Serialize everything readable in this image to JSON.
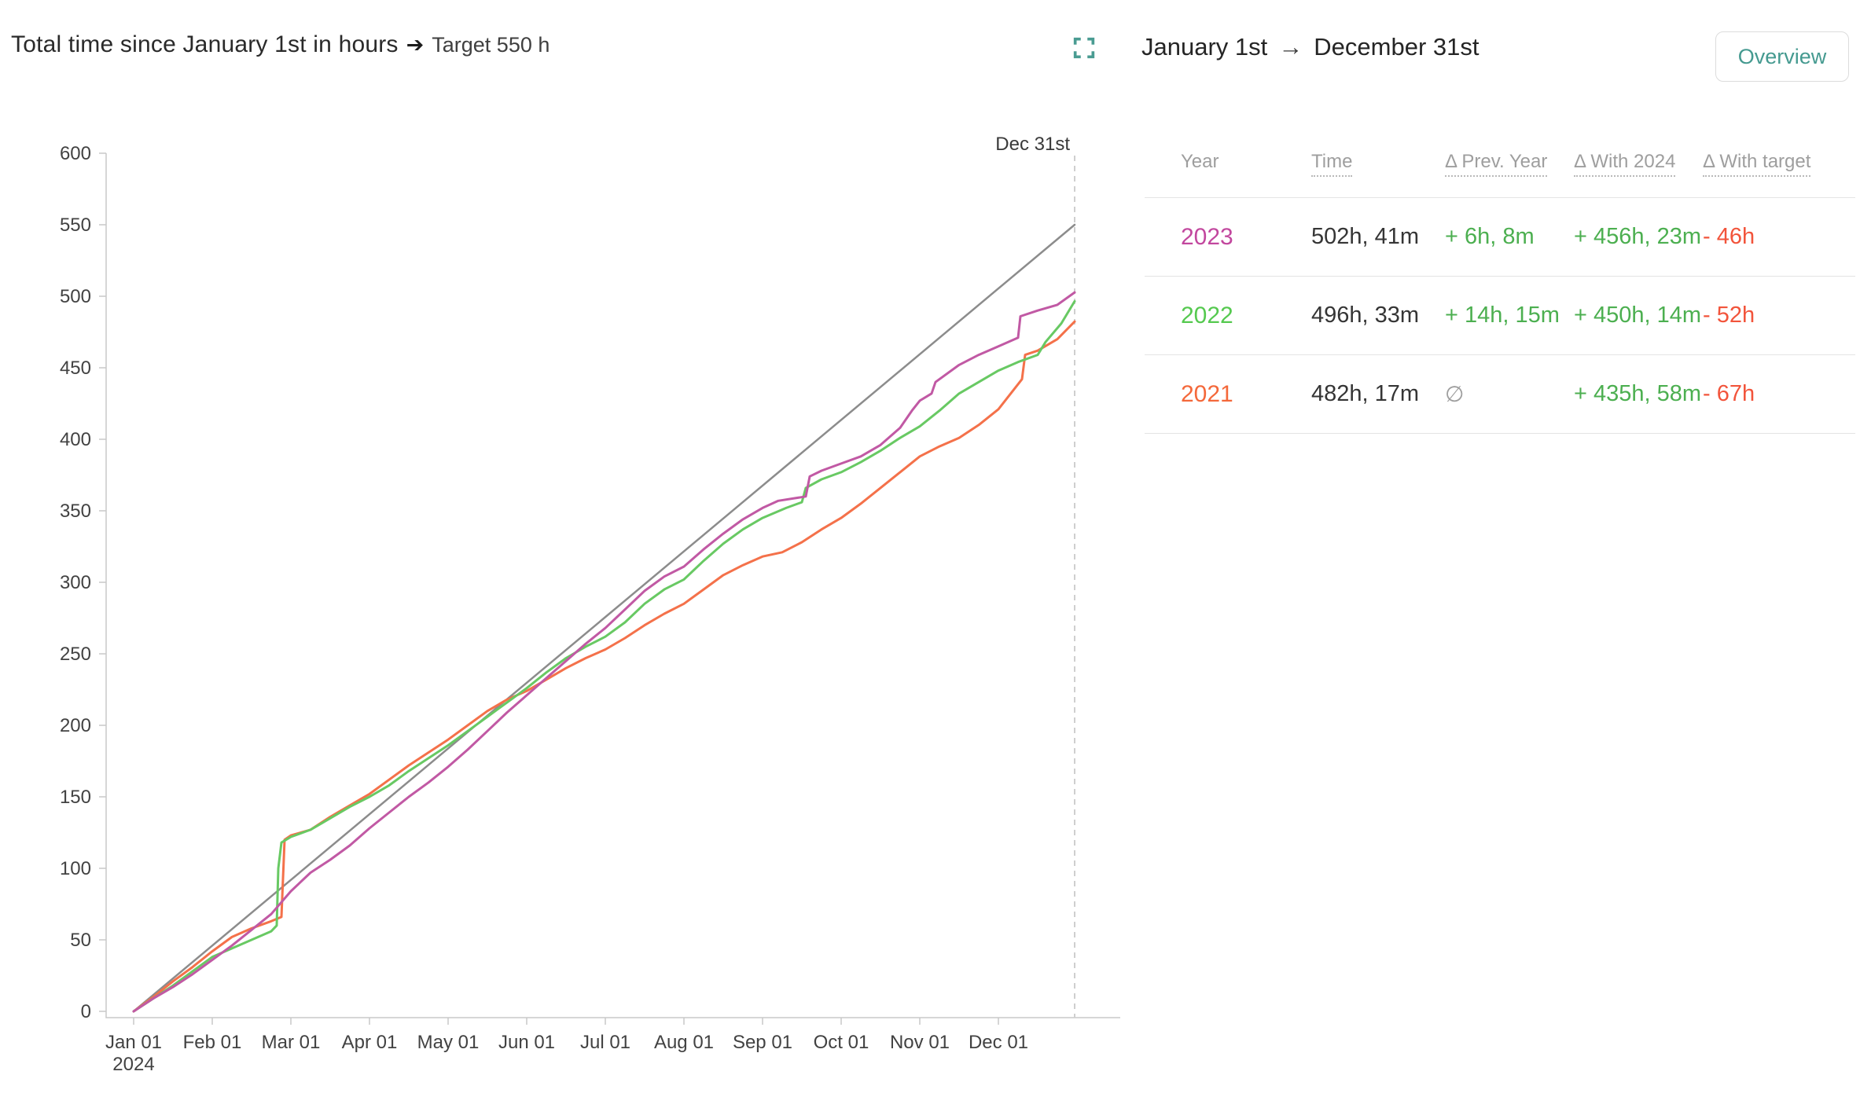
{
  "header": {
    "chart_title": "Total time since January 1st in hours",
    "title_arrow": "➔",
    "chart_target_label": "Target 550 h",
    "range_start": "January 1st",
    "range_arrow": "→",
    "range_end": "December 31st",
    "overview_button_label": "Overview"
  },
  "colors": {
    "accent_teal": "#459a90",
    "target_line": "#8c8c8c",
    "axis": "#c9c9c9",
    "dashed_line": "#cfcfcf",
    "positive_green": "#4caf50",
    "negative_red": "#f2543b",
    "year_2023": "#c2479e",
    "year_2022": "#55c94f",
    "year_2021": "#f4683a"
  },
  "chart_data": {
    "type": "line",
    "title": "Total time since January 1st in hours",
    "target_label": "Target 550 h",
    "xlabel": "",
    "ylabel": "",
    "y_axis": {
      "min": 0,
      "max": 600,
      "tick_step": 50
    },
    "x_axis": {
      "ticks": [
        "Jan 01",
        "Feb 01",
        "Mar 01",
        "Apr 01",
        "May 01",
        "Jun 01",
        "Jul 01",
        "Aug 01",
        "Sep 01",
        "Oct 01",
        "Nov 01",
        "Dec 01"
      ],
      "sub_label": "2024",
      "end_label": "Dec 31st",
      "end_month": 11.97
    },
    "grid": false,
    "legend": "none",
    "series": [
      {
        "name": "2024 target",
        "color": "#8c8c8c",
        "width": 2.5,
        "points": [
          [
            0,
            0
          ],
          [
            11.97,
            550
          ]
        ]
      },
      {
        "name": "2021",
        "color": "#f4714a",
        "width": 3,
        "points": [
          [
            0,
            0
          ],
          [
            0.25,
            10
          ],
          [
            0.5,
            21
          ],
          [
            0.75,
            31
          ],
          [
            1,
            42
          ],
          [
            1.25,
            52
          ],
          [
            1.5,
            58
          ],
          [
            1.75,
            63
          ],
          [
            1.88,
            66
          ],
          [
            1.92,
            120
          ],
          [
            2,
            123
          ],
          [
            2.25,
            127
          ],
          [
            2.5,
            136
          ],
          [
            2.75,
            144
          ],
          [
            3,
            152
          ],
          [
            3.25,
            162
          ],
          [
            3.5,
            172
          ],
          [
            3.75,
            181
          ],
          [
            4,
            190
          ],
          [
            4.25,
            200
          ],
          [
            4.5,
            210
          ],
          [
            4.75,
            218
          ],
          [
            5,
            224
          ],
          [
            5.25,
            232
          ],
          [
            5.5,
            240
          ],
          [
            5.75,
            247
          ],
          [
            6,
            253
          ],
          [
            6.25,
            261
          ],
          [
            6.5,
            270
          ],
          [
            6.75,
            278
          ],
          [
            7,
            285
          ],
          [
            7.25,
            295
          ],
          [
            7.5,
            305
          ],
          [
            7.75,
            312
          ],
          [
            8,
            318
          ],
          [
            8.25,
            321
          ],
          [
            8.5,
            328
          ],
          [
            8.75,
            337
          ],
          [
            9,
            345
          ],
          [
            9.25,
            355
          ],
          [
            9.5,
            366
          ],
          [
            9.75,
            377
          ],
          [
            10,
            388
          ],
          [
            10.25,
            395
          ],
          [
            10.5,
            401
          ],
          [
            10.75,
            410
          ],
          [
            11,
            421
          ],
          [
            11.2,
            435
          ],
          [
            11.3,
            442
          ],
          [
            11.34,
            459
          ],
          [
            11.5,
            462
          ],
          [
            11.75,
            470
          ],
          [
            11.97,
            482.3
          ]
        ]
      },
      {
        "name": "2022",
        "color": "#68c963",
        "width": 3,
        "points": [
          [
            0,
            0
          ],
          [
            0.25,
            9
          ],
          [
            0.5,
            18
          ],
          [
            0.75,
            28
          ],
          [
            1,
            38
          ],
          [
            1.25,
            44
          ],
          [
            1.5,
            50
          ],
          [
            1.75,
            56
          ],
          [
            1.82,
            60
          ],
          [
            1.84,
            100
          ],
          [
            1.88,
            118
          ],
          [
            2,
            122
          ],
          [
            2.25,
            127
          ],
          [
            2.5,
            135
          ],
          [
            2.75,
            143
          ],
          [
            3,
            150
          ],
          [
            3.25,
            158
          ],
          [
            3.5,
            168
          ],
          [
            3.75,
            177
          ],
          [
            4,
            186
          ],
          [
            4.25,
            196
          ],
          [
            4.5,
            206
          ],
          [
            4.75,
            216
          ],
          [
            5,
            226
          ],
          [
            5.25,
            237
          ],
          [
            5.5,
            247
          ],
          [
            5.75,
            255
          ],
          [
            6,
            262
          ],
          [
            6.25,
            272
          ],
          [
            6.5,
            285
          ],
          [
            6.75,
            295
          ],
          [
            7,
            302
          ],
          [
            7.25,
            315
          ],
          [
            7.5,
            327
          ],
          [
            7.75,
            337
          ],
          [
            8,
            345
          ],
          [
            8.3,
            352
          ],
          [
            8.5,
            356
          ],
          [
            8.55,
            366
          ],
          [
            8.75,
            372
          ],
          [
            9,
            377
          ],
          [
            9.25,
            384
          ],
          [
            9.5,
            392
          ],
          [
            9.75,
            401
          ],
          [
            10,
            409
          ],
          [
            10.25,
            420
          ],
          [
            10.5,
            432
          ],
          [
            10.75,
            440
          ],
          [
            11,
            448
          ],
          [
            11.25,
            454
          ],
          [
            11.5,
            459
          ],
          [
            11.6,
            468
          ],
          [
            11.8,
            481
          ],
          [
            11.97,
            496.5
          ]
        ]
      },
      {
        "name": "2023",
        "color": "#c159a4",
        "width": 3,
        "points": [
          [
            0,
            0
          ],
          [
            0.25,
            9
          ],
          [
            0.5,
            17
          ],
          [
            0.75,
            26
          ],
          [
            1,
            36
          ],
          [
            1.25,
            46
          ],
          [
            1.5,
            57
          ],
          [
            1.75,
            68
          ],
          [
            2,
            84
          ],
          [
            2.25,
            97
          ],
          [
            2.5,
            106
          ],
          [
            2.75,
            116
          ],
          [
            3,
            128
          ],
          [
            3.25,
            139
          ],
          [
            3.5,
            150
          ],
          [
            3.75,
            160
          ],
          [
            4,
            171
          ],
          [
            4.25,
            183
          ],
          [
            4.5,
            196
          ],
          [
            4.75,
            209
          ],
          [
            5,
            221
          ],
          [
            5.25,
            233
          ],
          [
            5.5,
            245
          ],
          [
            5.75,
            257
          ],
          [
            6,
            268
          ],
          [
            6.25,
            281
          ],
          [
            6.5,
            294
          ],
          [
            6.75,
            304
          ],
          [
            7,
            311
          ],
          [
            7.25,
            323
          ],
          [
            7.5,
            334
          ],
          [
            7.75,
            344
          ],
          [
            8,
            352
          ],
          [
            8.2,
            357
          ],
          [
            8.55,
            360
          ],
          [
            8.6,
            374
          ],
          [
            8.75,
            378
          ],
          [
            9,
            383
          ],
          [
            9.25,
            388
          ],
          [
            9.5,
            396
          ],
          [
            9.75,
            408
          ],
          [
            9.9,
            420
          ],
          [
            10,
            427
          ],
          [
            10.15,
            432
          ],
          [
            10.2,
            440
          ],
          [
            10.5,
            452
          ],
          [
            10.75,
            459
          ],
          [
            11,
            465
          ],
          [
            11.25,
            471
          ],
          [
            11.28,
            486
          ],
          [
            11.5,
            490
          ],
          [
            11.75,
            494
          ],
          [
            11.97,
            502.7
          ]
        ]
      }
    ]
  },
  "table": {
    "columns": [
      {
        "label": "Year",
        "sortable": false
      },
      {
        "label": "Time",
        "sortable": true
      },
      {
        "label": "Δ Prev. Year",
        "sortable": true
      },
      {
        "label": "Δ With 2024",
        "sortable": true
      },
      {
        "label": "Δ With target",
        "sortable": true
      }
    ],
    "rows": [
      {
        "year": "2023",
        "year_color": "#c2479e",
        "time": "502h, 41m",
        "prev_year": "+ 6h, 8m",
        "prev_year_color": "#4caf50",
        "with_2024": "+ 456h, 23m",
        "with_target": "- 46h"
      },
      {
        "year": "2022",
        "year_color": "#55c94f",
        "time": "496h, 33m",
        "prev_year": "+ 14h, 15m",
        "prev_year_color": "#4caf50",
        "with_2024": "+ 450h, 14m",
        "with_target": "- 52h"
      },
      {
        "year": "2021",
        "year_color": "#f4683a",
        "time": "482h, 17m",
        "prev_year": "∅",
        "prev_year_color": "#9e9e9e",
        "with_2024": "+ 435h, 58m",
        "with_target": "- 67h"
      }
    ]
  }
}
